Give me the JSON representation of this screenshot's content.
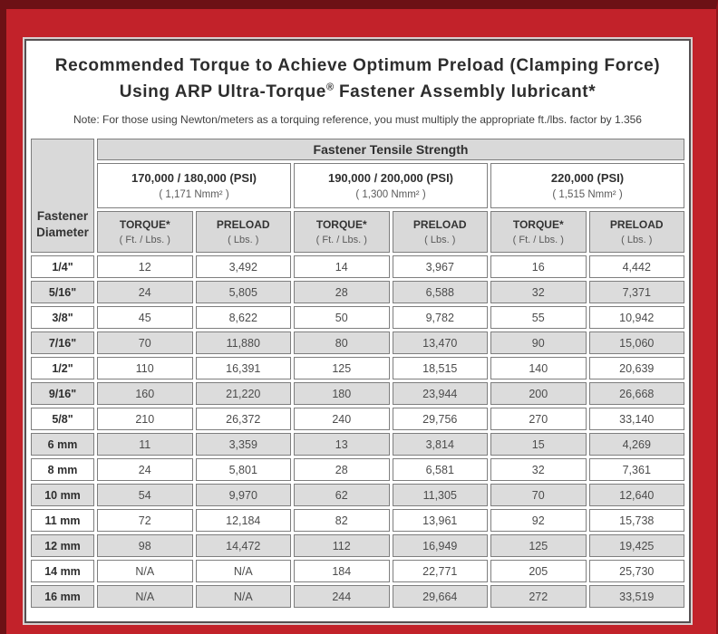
{
  "title": {
    "line1": "Recommended Torque to Achieve Optimum Preload (Clamping Force)",
    "line2_pre": "Using ARP Ultra-Torque",
    "registered_mark": "®",
    "line2_post": " Fastener Assembly lubricant*"
  },
  "note": "Note: For those using Newton/meters as a torquing reference, you must multiply the appropriate ft./lbs. factor by 1.356",
  "table": {
    "corner": {
      "line1": "Fastener",
      "line2": "Diameter"
    },
    "tensile_header": "Fastener Tensile Strength",
    "groups": [
      {
        "psi": "170,000 / 180,000 (PSI)",
        "nmm": "( 1,171 Nmm² )"
      },
      {
        "psi": "190,000 / 200,000 (PSI)",
        "nmm": "( 1,300 Nmm² )"
      },
      {
        "psi": "220,000 (PSI)",
        "nmm": "( 1,515 Nmm² )"
      }
    ],
    "subheaders": [
      {
        "label": "TORQUE*",
        "unit": "( Ft. / Lbs. )"
      },
      {
        "label": "PRELOAD",
        "unit": "( Lbs. )"
      },
      {
        "label": "TORQUE*",
        "unit": "( Ft. / Lbs. )"
      },
      {
        "label": "PRELOAD",
        "unit": "( Lbs. )"
      },
      {
        "label": "TORQUE*",
        "unit": "( Ft. / Lbs. )"
      },
      {
        "label": "PRELOAD",
        "unit": "( Lbs. )"
      }
    ],
    "rows": [
      {
        "dia": "1/4\"",
        "values": [
          "12",
          "3,492",
          "14",
          "3,967",
          "16",
          "4,442"
        ]
      },
      {
        "dia": "5/16\"",
        "values": [
          "24",
          "5,805",
          "28",
          "6,588",
          "32",
          "7,371"
        ]
      },
      {
        "dia": "3/8\"",
        "values": [
          "45",
          "8,622",
          "50",
          "9,782",
          "55",
          "10,942"
        ]
      },
      {
        "dia": "7/16\"",
        "values": [
          "70",
          "11,880",
          "80",
          "13,470",
          "90",
          "15,060"
        ]
      },
      {
        "dia": "1/2\"",
        "values": [
          "110",
          "16,391",
          "125",
          "18,515",
          "140",
          "20,639"
        ]
      },
      {
        "dia": "9/16\"",
        "values": [
          "160",
          "21,220",
          "180",
          "23,944",
          "200",
          "26,668"
        ]
      },
      {
        "dia": "5/8\"",
        "values": [
          "210",
          "26,372",
          "240",
          "29,756",
          "270",
          "33,140"
        ]
      },
      {
        "dia": "6 mm",
        "values": [
          "11",
          "3,359",
          "13",
          "3,814",
          "15",
          "4,269"
        ]
      },
      {
        "dia": "8 mm",
        "values": [
          "24",
          "5,801",
          "28",
          "6,581",
          "32",
          "7,361"
        ]
      },
      {
        "dia": "10 mm",
        "values": [
          "54",
          "9,970",
          "62",
          "11,305",
          "70",
          "12,640"
        ]
      },
      {
        "dia": "11 mm",
        "values": [
          "72",
          "12,184",
          "82",
          "13,961",
          "92",
          "15,738"
        ]
      },
      {
        "dia": "12 mm",
        "values": [
          "98",
          "14,472",
          "112",
          "16,949",
          "125",
          "19,425"
        ]
      },
      {
        "dia": "14 mm",
        "values": [
          "N/A",
          "N/A",
          "184",
          "22,771",
          "205",
          "25,730"
        ]
      },
      {
        "dia": "16 mm",
        "values": [
          "N/A",
          "N/A",
          "244",
          "29,664",
          "272",
          "33,519"
        ]
      }
    ]
  },
  "colors": {
    "frame_red": "#c2222a",
    "frame_maroon": "#6d1115",
    "header_grey": "#d9d9d9",
    "row_grey": "#dcdcdc",
    "cell_border": "#7e7e7e"
  }
}
